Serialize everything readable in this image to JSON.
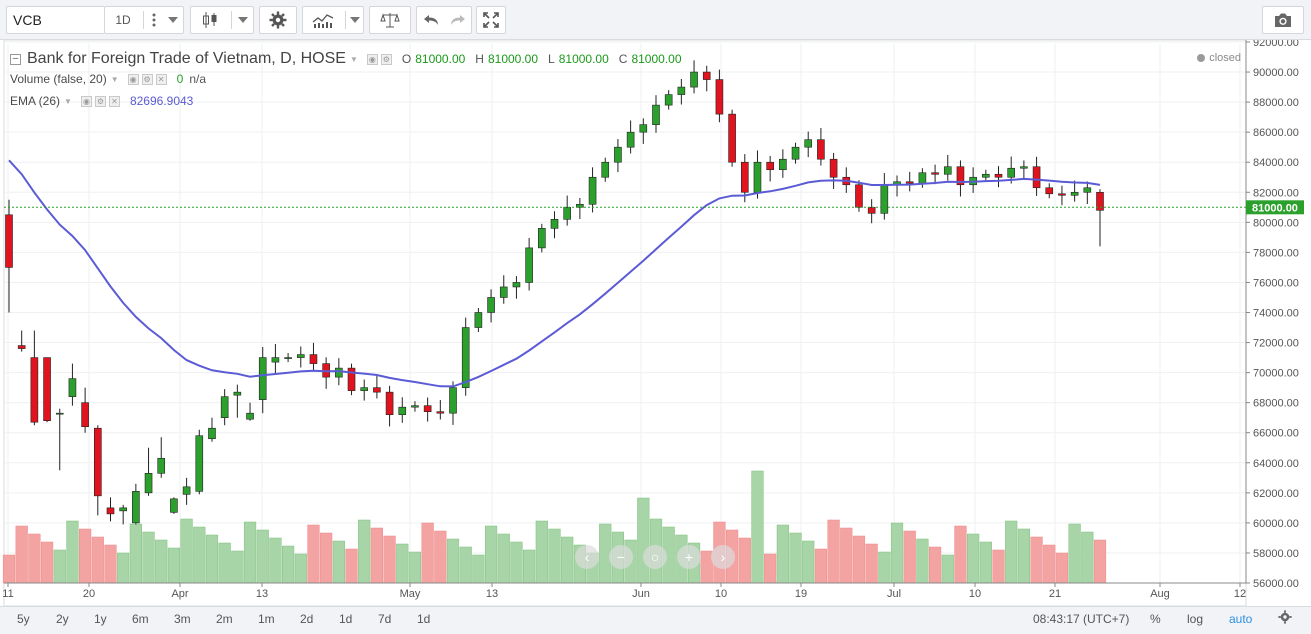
{
  "toolbar": {
    "symbol": "VCB",
    "interval": "1D",
    "icons": [
      "more-vertical-icon",
      "chevron-down-icon",
      "candlestick-icon",
      "chevron-down-icon",
      "gear-icon",
      "indicators-icon",
      "chevron-down-icon",
      "compare-scale-icon",
      "undo-icon",
      "redo-icon",
      "fullscreen-icon",
      "camera-icon"
    ]
  },
  "legend": {
    "title": "Bank for Foreign Trade of Vietnam, D, HOSE",
    "o_label": "O",
    "o_value": "81000.00",
    "h_label": "H",
    "h_value": "81000.00",
    "l_label": "L",
    "l_value": "81000.00",
    "c_label": "C",
    "c_value": "81000.00",
    "volume_label": "Volume (false, 20)",
    "volume_value": "0",
    "volume_ma": "n/a",
    "ema_label": "EMA (26)",
    "ema_value": "82696.9043"
  },
  "status": "closed",
  "price_tag": "81000.00",
  "bottom": {
    "ranges": [
      "5y",
      "2y",
      "1y",
      "6m",
      "3m",
      "2m",
      "1m",
      "2d",
      "1d",
      "7d",
      "1d"
    ],
    "time": "08:43:17",
    "tz": "(UTC+7)",
    "percent": "%",
    "log": "log",
    "auto": "auto"
  },
  "colors": {
    "up": "#2ca02c",
    "down": "#e0141e",
    "ema": "#5b5bd6",
    "vol_up": "#a8d5a8",
    "vol_down": "#f4a3a3",
    "price_line": "#2ca02c"
  },
  "chart_data": {
    "type": "candlestick",
    "title": "Bank for Foreign Trade of Vietnam, D, HOSE",
    "y_axis": {
      "min": 56000,
      "max": 92000,
      "ticks": [
        "92000.00",
        "90000.00",
        "88000.00",
        "86000.00",
        "84000.00",
        "82000.00",
        "80000.00",
        "78000.00",
        "76000.00",
        "74000.00",
        "72000.00",
        "70000.00",
        "68000.00",
        "66000.00",
        "64000.00",
        "62000.00",
        "60000.00",
        "58000.00",
        "56000.00"
      ]
    },
    "x_axis": {
      "ticks": [
        "11",
        "20",
        "Apr",
        "13",
        "May",
        "13",
        "Jun",
        "10",
        "19",
        "Jul",
        "10",
        "21",
        "Aug",
        "12"
      ]
    },
    "candles": [
      {
        "o": 80500,
        "h": 81500,
        "l": 74000,
        "c": 77000
      },
      {
        "o": 71800,
        "h": 72800,
        "l": 71400,
        "c": 71600
      },
      {
        "o": 71000,
        "h": 72800,
        "l": 66500,
        "c": 66700
      },
      {
        "o": 71000,
        "h": 71000,
        "l": 66700,
        "c": 66800
      },
      {
        "o": 67300,
        "h": 67600,
        "l": 63500,
        "c": 67300
      },
      {
        "o": 68400,
        "h": 70600,
        "l": 67800,
        "c": 69600
      },
      {
        "o": 68000,
        "h": 69000,
        "l": 66000,
        "c": 66400
      },
      {
        "o": 66300,
        "h": 66500,
        "l": 60500,
        "c": 61800
      },
      {
        "o": 61000,
        "h": 61700,
        "l": 60100,
        "c": 60600
      },
      {
        "o": 60800,
        "h": 61200,
        "l": 59900,
        "c": 61000
      },
      {
        "o": 60000,
        "h": 62600,
        "l": 59900,
        "c": 62100
      },
      {
        "o": 62000,
        "h": 65000,
        "l": 61800,
        "c": 63300
      },
      {
        "o": 63300,
        "h": 65700,
        "l": 63000,
        "c": 64300
      },
      {
        "o": 60700,
        "h": 61700,
        "l": 60600,
        "c": 61600
      },
      {
        "o": 61900,
        "h": 63000,
        "l": 61200,
        "c": 62400
      },
      {
        "o": 62100,
        "h": 66200,
        "l": 61900,
        "c": 65800
      },
      {
        "o": 65600,
        "h": 67000,
        "l": 65400,
        "c": 66300
      },
      {
        "o": 67000,
        "h": 68900,
        "l": 66500,
        "c": 68400
      },
      {
        "o": 68500,
        "h": 69200,
        "l": 67000,
        "c": 68700
      },
      {
        "o": 66900,
        "h": 68000,
        "l": 66800,
        "c": 67300
      },
      {
        "o": 68200,
        "h": 71700,
        "l": 67300,
        "c": 71000
      },
      {
        "o": 70700,
        "h": 71900,
        "l": 69900,
        "c": 71000
      }
    ],
    "ema26_start": 84700,
    "ema26_end": 82700
  }
}
